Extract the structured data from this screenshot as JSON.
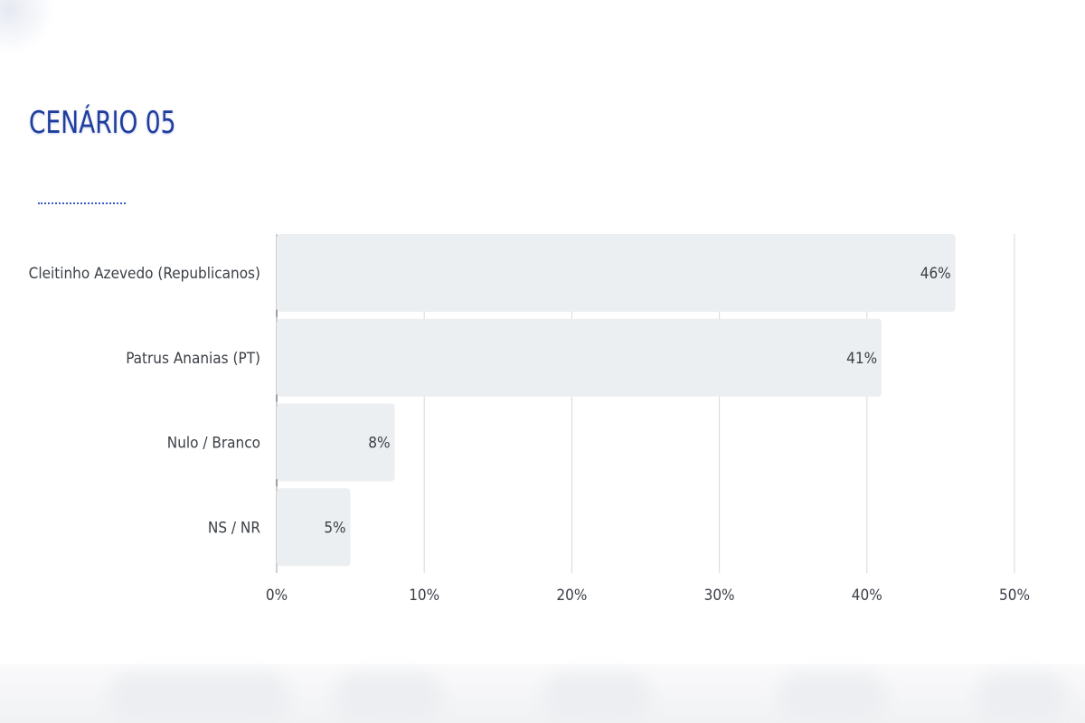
{
  "title": "CENÁRIO 05",
  "chart_data": {
    "type": "bar",
    "orientation": "horizontal",
    "categories": [
      "Cleitinho Azevedo (Republicanos)",
      "Patrus Ananias (PT)",
      "Nulo / Branco",
      "NS / NR"
    ],
    "values": [
      46,
      41,
      8,
      5
    ],
    "value_labels": [
      "46%",
      "41%",
      "8%",
      "5%"
    ],
    "xlim": [
      0,
      50
    ],
    "xticks": [
      0,
      10,
      20,
      30,
      40,
      50
    ],
    "xtick_labels": [
      "0%",
      "10%",
      "20%",
      "30%",
      "40%",
      "50%"
    ],
    "grid": true,
    "bar_color": "#eceff1",
    "title_color": "#1f3d9e"
  }
}
